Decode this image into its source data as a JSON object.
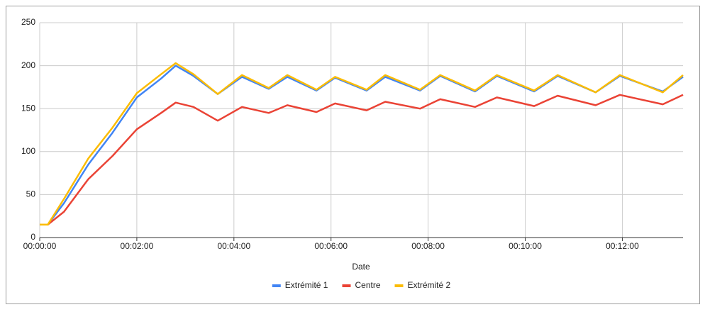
{
  "chart_data": {
    "type": "line",
    "x_label": "Date",
    "x": [
      0,
      10,
      30,
      60,
      90,
      120,
      150,
      168,
      190,
      220,
      250,
      283,
      306,
      342,
      365,
      404,
      427,
      470,
      495,
      538,
      565,
      611,
      640,
      687,
      717,
      770,
      795
    ],
    "series": [
      {
        "name": "Extrémité 1",
        "color": "#4285f4",
        "values": [
          15,
          15,
          40,
          85,
          122,
          163,
          185,
          200,
          188,
          167,
          187,
          173,
          187,
          171,
          186,
          171,
          187,
          171,
          188,
          170,
          188,
          170,
          188,
          169,
          188,
          170,
          187
        ]
      },
      {
        "name": "Centre",
        "color": "#ea4335",
        "values": [
          15,
          15,
          30,
          68,
          95,
          126,
          145,
          157,
          152,
          136,
          152,
          145,
          154,
          146,
          156,
          148,
          158,
          150,
          161,
          152,
          163,
          153,
          165,
          154,
          166,
          155,
          166
        ]
      },
      {
        "name": "Extrémité 2",
        "color": "#fbbc04",
        "values": [
          15,
          15,
          45,
          92,
          128,
          168,
          190,
          203,
          190,
          167,
          189,
          174,
          189,
          172,
          187,
          172,
          189,
          172,
          189,
          171,
          189,
          171,
          189,
          169,
          189,
          169,
          189
        ]
      }
    ],
    "xlim": [
      0,
      795
    ],
    "xticks": [
      {
        "value": 0,
        "label": "00:00:00"
      },
      {
        "value": 120,
        "label": "00:02:00"
      },
      {
        "value": 240,
        "label": "00:04:00"
      },
      {
        "value": 360,
        "label": "00:06:00"
      },
      {
        "value": 480,
        "label": "00:08:00"
      },
      {
        "value": 600,
        "label": "00:10:00"
      },
      {
        "value": 720,
        "label": "00:12:00"
      }
    ],
    "ylim": [
      0,
      250
    ],
    "yticks": [
      0,
      50,
      100,
      150,
      200,
      250
    ],
    "grid": true,
    "legend": "bottom"
  }
}
